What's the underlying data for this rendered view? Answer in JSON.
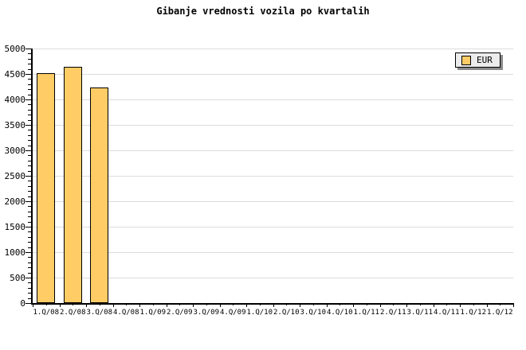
{
  "title": "Gibanje vrednosti vozila po kvartalih",
  "legend": {
    "position": "top-right",
    "items": [
      {
        "label": "EUR",
        "swatch_color": "#FFCC66"
      }
    ]
  },
  "colors": {
    "background": "#FFFFFF",
    "bar_fill": "#FFCC66",
    "bar_border": "#000000",
    "gridline": "#DCDCDC",
    "axis": "#000000",
    "legend_bg": "#ECECEC",
    "legend_shadow": "#8A8A8A",
    "text": "#000000"
  },
  "chart_data": {
    "type": "bar",
    "title": "Gibanje vrednosti vozila po kvartalih",
    "categories": [
      "1.Q/08",
      "2.Q/08",
      "3.Q/08",
      "4.Q/08",
      "1.Q/09",
      "2.Q/09",
      "3.Q/09",
      "4.Q/09",
      "1.Q/10",
      "2.Q/10",
      "3.Q/10",
      "4.Q/10",
      "1.Q/11",
      "2.Q/11",
      "3.Q/11",
      "4.Q/11",
      "1.Q/12",
      "1.Q/12"
    ],
    "series": [
      {
        "name": "EUR",
        "values": [
          4500,
          4620,
          4220,
          null,
          null,
          null,
          null,
          null,
          null,
          null,
          null,
          null,
          null,
          null,
          null,
          null,
          null,
          null
        ]
      }
    ],
    "xlabel": "",
    "ylabel": "",
    "ylim": [
      0,
      5000
    ],
    "y_tick_step": 500,
    "y_minor_tick_step": 100,
    "y_tick_labels": [
      "0",
      "500",
      "1000",
      "1500",
      "2000",
      "2500",
      "3000",
      "3500",
      "4000",
      "4500",
      "5000"
    ],
    "grid": "horizontal",
    "legend_position": "top-right"
  }
}
